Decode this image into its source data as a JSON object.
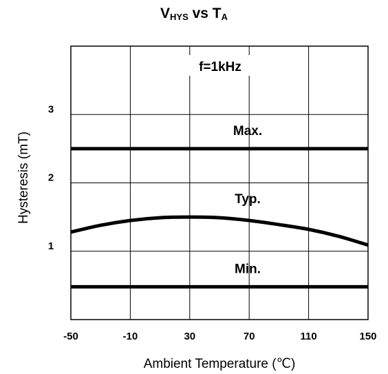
{
  "chart_data": {
    "type": "line",
    "title": {
      "v": "V",
      "v_sub": "HYS",
      "mid": " vs T",
      "t_sub": "A"
    },
    "xlabel": "Ambient Temperature (℃)",
    "ylabel": "Hysteresis (mT)",
    "xlim": [
      -50,
      150
    ],
    "ylim": [
      0,
      4
    ],
    "x_ticks": [
      -50,
      -10,
      30,
      70,
      110,
      150
    ],
    "y_ticks": [
      1,
      2,
      3
    ],
    "grid": true,
    "condition": "f=1kHz",
    "series": [
      {
        "name": "Max.",
        "x": [
          -50,
          150
        ],
        "y": [
          2.5,
          2.5
        ]
      },
      {
        "name": "Typ.",
        "x": [
          -50,
          -30,
          -10,
          10,
          30,
          50,
          70,
          90,
          110,
          130,
          150
        ],
        "y": [
          1.28,
          1.38,
          1.45,
          1.49,
          1.5,
          1.49,
          1.45,
          1.39,
          1.32,
          1.22,
          1.09
        ]
      },
      {
        "name": "Min.",
        "x": [
          -50,
          150
        ],
        "y": [
          0.48,
          0.48
        ]
      }
    ]
  }
}
